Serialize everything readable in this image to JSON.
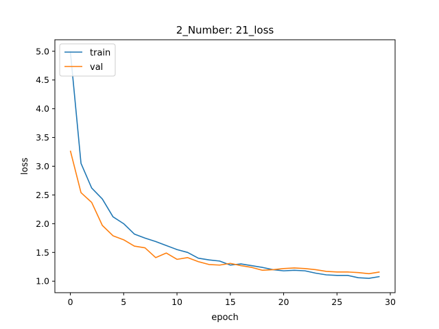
{
  "chart_data": {
    "type": "line",
    "title": "2_Number: 21_loss",
    "xlabel": "epoch",
    "ylabel": "loss",
    "xlim": [
      -1.45,
      30.45
    ],
    "ylim": [
      0.8,
      5.2
    ],
    "xticks": [
      0,
      5,
      10,
      15,
      20,
      25,
      30
    ],
    "yticks": [
      1.0,
      1.5,
      2.0,
      2.5,
      3.0,
      3.5,
      4.0,
      4.5,
      5.0
    ],
    "ytick_labels": [
      "1.0",
      "1.5",
      "2.0",
      "2.5",
      "3.0",
      "3.5",
      "4.0",
      "4.5",
      "5.0"
    ],
    "grid": false,
    "legend": "top-left",
    "x": [
      0,
      1,
      2,
      3,
      4,
      5,
      6,
      7,
      8,
      9,
      10,
      11,
      12,
      13,
      14,
      15,
      16,
      17,
      18,
      19,
      20,
      21,
      22,
      23,
      24,
      25,
      26,
      27,
      28,
      29
    ],
    "series": [
      {
        "name": "train",
        "color": "#1f77b4",
        "values": [
          5.0,
          3.05,
          2.62,
          2.43,
          2.12,
          2.0,
          1.82,
          1.75,
          1.69,
          1.62,
          1.55,
          1.5,
          1.4,
          1.37,
          1.35,
          1.28,
          1.3,
          1.27,
          1.24,
          1.2,
          1.18,
          1.19,
          1.18,
          1.14,
          1.11,
          1.1,
          1.1,
          1.06,
          1.05,
          1.08
        ]
      },
      {
        "name": "val",
        "color": "#ff7f0e",
        "values": [
          3.27,
          2.54,
          2.37,
          1.97,
          1.79,
          1.72,
          1.61,
          1.58,
          1.41,
          1.49,
          1.38,
          1.41,
          1.34,
          1.29,
          1.28,
          1.31,
          1.27,
          1.24,
          1.19,
          1.2,
          1.22,
          1.23,
          1.22,
          1.2,
          1.17,
          1.16,
          1.16,
          1.15,
          1.13,
          1.16
        ]
      }
    ]
  }
}
